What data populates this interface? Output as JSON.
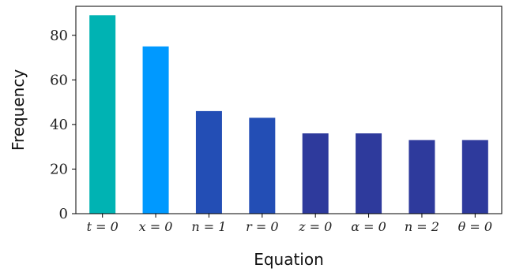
{
  "chart_data": {
    "type": "bar",
    "title": "",
    "xlabel": "Equation",
    "ylabel": "Frequency",
    "categories": [
      "t = 0",
      "x = 0",
      "n = 1",
      "r = 0",
      "z = 0",
      "α = 0",
      "n = 2",
      "θ = 0"
    ],
    "values": [
      89,
      75,
      46,
      43,
      36,
      36,
      33,
      33
    ],
    "colors": [
      "#00b3b3",
      "#0099ff",
      "#234eb5",
      "#234eb5",
      "#2e3a9c",
      "#2e3a9c",
      "#2e3a9c",
      "#2e3a9c"
    ],
    "ylim": [
      0,
      93
    ],
    "yticks": [
      0,
      20,
      40,
      60,
      80
    ],
    "grid": false
  }
}
